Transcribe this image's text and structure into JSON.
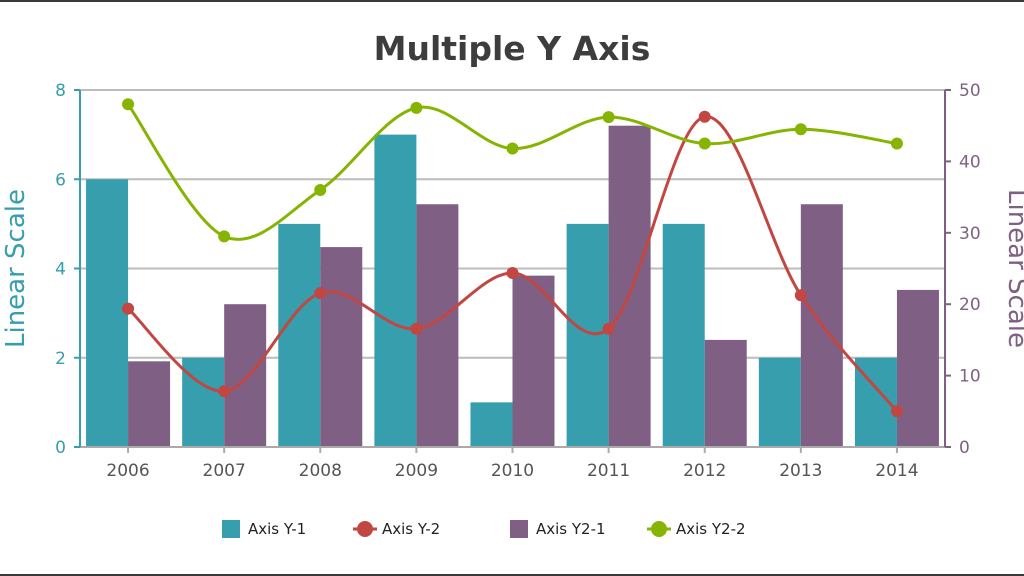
{
  "chart_data": {
    "type": "bar",
    "title": "Multiple Y Axis",
    "categories": [
      "2006",
      "2007",
      "2008",
      "2009",
      "2010",
      "2011",
      "2012",
      "2013",
      "2014"
    ],
    "y_axis_left": {
      "title": "Linear Scale",
      "range": [
        0,
        8
      ],
      "ticks": [
        0,
        2,
        4,
        6,
        8
      ],
      "color": "#369EAD"
    },
    "y_axis_right": {
      "title": "Linear Scale",
      "range": [
        0,
        50
      ],
      "ticks": [
        0,
        10,
        20,
        30,
        40,
        50
      ],
      "color": "#7F6084"
    },
    "grid": true,
    "legend_position": "bottom",
    "series": [
      {
        "name": "Axis Y-1",
        "type": "bar",
        "axis": "left",
        "color": "#369EAD",
        "values": [
          6,
          2,
          5,
          7,
          1,
          5,
          5,
          2,
          2
        ]
      },
      {
        "name": "Axis Y-2",
        "type": "spline",
        "axis": "left",
        "color": "#C24642",
        "values": [
          3.1,
          1.25,
          3.45,
          2.65,
          3.9,
          2.65,
          7.4,
          3.4,
          0.8
        ]
      },
      {
        "name": "Axis Y2-1",
        "type": "bar",
        "axis": "right",
        "color": "#7F6084",
        "values": [
          12,
          20,
          28,
          34,
          24,
          45,
          15,
          34,
          22
        ]
      },
      {
        "name": "Axis Y2-2",
        "type": "spline",
        "axis": "right",
        "color": "#86B402",
        "values": [
          48,
          29.5,
          36,
          47.5,
          41.8,
          46.2,
          42.5,
          44.5,
          42.5
        ]
      }
    ]
  }
}
